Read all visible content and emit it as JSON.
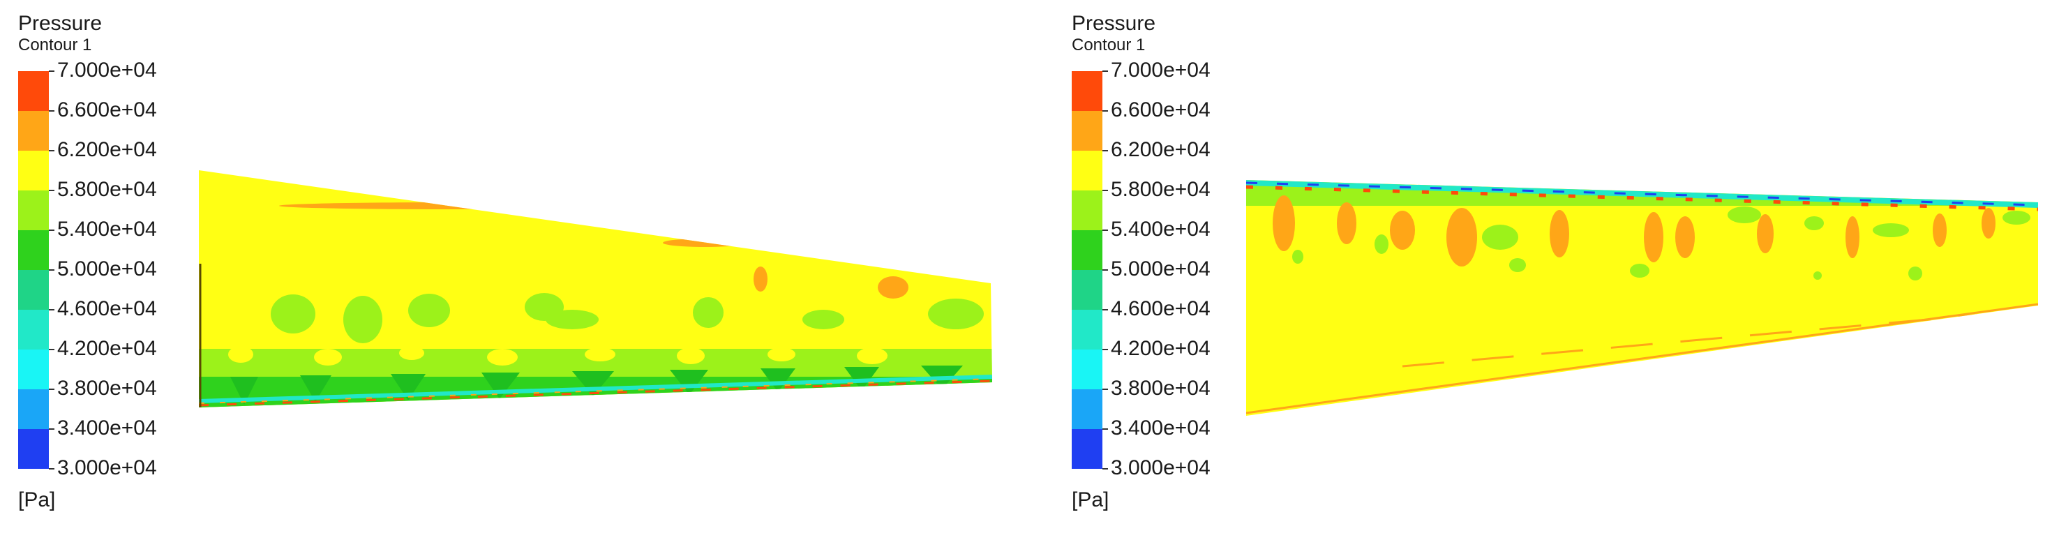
{
  "panels": [
    {
      "title": "Pressure",
      "subtitle": "Contour 1",
      "unit": "[Pa]"
    },
    {
      "title": "Pressure",
      "subtitle": "Contour 1",
      "unit": "[Pa]"
    }
  ],
  "chart_data": [
    {
      "type": "heatmap",
      "title": "Pressure",
      "subtitle": "Contour 1",
      "unit": "[Pa]",
      "color_scale": {
        "levels": [
          "7.000e+04",
          "6.600e+04",
          "6.200e+04",
          "5.800e+04",
          "5.400e+04",
          "5.000e+04",
          "4.600e+04",
          "4.200e+04",
          "3.800e+04",
          "3.400e+04",
          "3.000e+04"
        ],
        "min": 30000,
        "max": 70000,
        "step": 4000,
        "colors": [
          "#ff4a0a",
          "#ffa617",
          "#ffff14",
          "#9cf21a",
          "#2fd21d",
          "#1fd487",
          "#21e8c8",
          "#19f5f5",
          "#1aa6f7",
          "#1f3ff2"
        ]
      },
      "dominant_value_range": [
        58000,
        62000
      ],
      "low_pressure_edge": "bottom"
    },
    {
      "type": "heatmap",
      "title": "Pressure",
      "subtitle": "Contour 1",
      "unit": "[Pa]",
      "color_scale": {
        "levels": [
          "7.000e+04",
          "6.600e+04",
          "6.200e+04",
          "5.800e+04",
          "5.400e+04",
          "5.000e+04",
          "4.600e+04",
          "4.200e+04",
          "3.800e+04",
          "3.400e+04",
          "3.000e+04"
        ],
        "min": 30000,
        "max": 70000,
        "step": 4000,
        "colors": [
          "#ff4a0a",
          "#ffa617",
          "#ffff14",
          "#9cf21a",
          "#2fd21d",
          "#1fd487",
          "#21e8c8",
          "#19f5f5",
          "#1aa6f7",
          "#1f3ff2"
        ]
      },
      "dominant_value_range": [
        58000,
        62000
      ],
      "low_pressure_edge": "top"
    }
  ]
}
